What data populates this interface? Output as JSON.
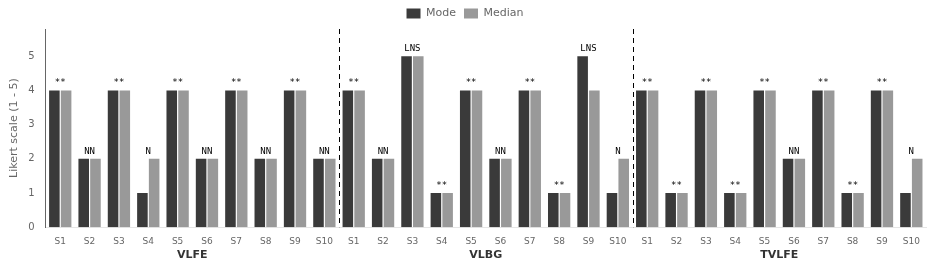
{
  "chart_data": {
    "type": "bar",
    "categories": [
      "S1",
      "S2",
      "S3",
      "S4",
      "S5",
      "S6",
      "S7",
      "S8",
      "S9",
      "S10",
      "S1",
      "S2",
      "S3",
      "S4",
      "S5",
      "S6",
      "S7",
      "S8",
      "S9",
      "S10",
      "S1",
      "S2",
      "S3",
      "S4",
      "S5",
      "S6",
      "S7",
      "S8",
      "S9",
      "S10"
    ],
    "group_labels": [
      "VLFE",
      "VLBG",
      "TVLFE"
    ],
    "series": [
      {
        "name": "Mode",
        "color": "#3a3a3a",
        "values": [
          4,
          2,
          4,
          1,
          4,
          2,
          4,
          2,
          4,
          2,
          4,
          2,
          5,
          1,
          4,
          2,
          4,
          1,
          5,
          1,
          4,
          1,
          4,
          1,
          4,
          2,
          4,
          1,
          4,
          1
        ]
      },
      {
        "name": "Median",
        "color": "#999999",
        "values": [
          4,
          2,
          4,
          2,
          4,
          2,
          4,
          2,
          4,
          2,
          4,
          2,
          5,
          1,
          4,
          2,
          4,
          1,
          4,
          2,
          4,
          1,
          4,
          1,
          4,
          2,
          4,
          1,
          4,
          2
        ]
      }
    ],
    "annotations": [
      "**",
      "NN",
      "**",
      "N",
      "**",
      "NN",
      "**",
      "NN",
      "**",
      "NN",
      "**",
      "NN",
      "LNS",
      "**",
      "**",
      "NN",
      "**",
      "**",
      "LNS",
      "N",
      "**",
      "**",
      "**",
      "**",
      "**",
      "NN",
      "**",
      "**",
      "**",
      "N"
    ],
    "ylabel": "Likert scale (1 - 5)",
    "ylim": [
      0,
      5.8
    ],
    "yticks": [
      0,
      1,
      2,
      3,
      4,
      5
    ],
    "grid": false,
    "legend": "top"
  }
}
